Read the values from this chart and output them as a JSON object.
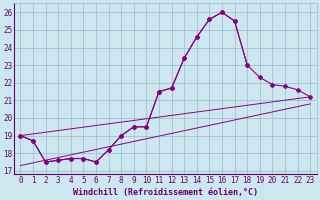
{
  "xlabel": "Windchill (Refroidissement éolien,°C)",
  "bg_color": "#cce8ee",
  "line_color": "#880088",
  "grid_color": "#99bbcc",
  "x_ticks": [
    0,
    1,
    2,
    3,
    4,
    5,
    6,
    7,
    8,
    9,
    10,
    11,
    12,
    13,
    14,
    15,
    16,
    17,
    18,
    19,
    20,
    21,
    22,
    23
  ],
  "y_ticks": [
    17,
    18,
    19,
    20,
    21,
    22,
    23,
    24,
    25,
    26
  ],
  "xlim": [
    -0.5,
    23.5
  ],
  "ylim": [
    16.8,
    26.5
  ],
  "series_main_x": [
    0,
    1,
    2,
    3,
    4,
    5,
    6,
    7,
    8,
    9,
    10,
    11,
    12,
    13,
    14,
    15,
    16,
    17,
    18,
    19,
    20,
    21,
    22,
    23
  ],
  "series_main_y": [
    19.0,
    18.7,
    17.5,
    17.6,
    17.7,
    17.7,
    17.5,
    18.2,
    19.0,
    19.5,
    19.5,
    21.5,
    21.7,
    23.4,
    24.6,
    25.6,
    26.0,
    25.5,
    23.0,
    22.3,
    21.9,
    21.8,
    21.6,
    21.2
  ],
  "series_peak_x": [
    0,
    1,
    2,
    3,
    4,
    5,
    6,
    7,
    8,
    9,
    10,
    11,
    12,
    13,
    14,
    15,
    16,
    17,
    18
  ],
  "series_peak_y": [
    19.0,
    18.7,
    17.5,
    17.6,
    17.7,
    17.7,
    17.5,
    18.2,
    19.0,
    19.5,
    19.5,
    21.5,
    21.7,
    23.4,
    24.6,
    25.6,
    26.0,
    25.5,
    23.0
  ],
  "line1_x": [
    0,
    23
  ],
  "line1_y": [
    19.0,
    21.2
  ],
  "line2_x": [
    0,
    23
  ],
  "line2_y": [
    17.3,
    20.8
  ],
  "tick_color": "#660066",
  "tick_fontsize": 5.5,
  "xlabel_fontsize": 6.0
}
